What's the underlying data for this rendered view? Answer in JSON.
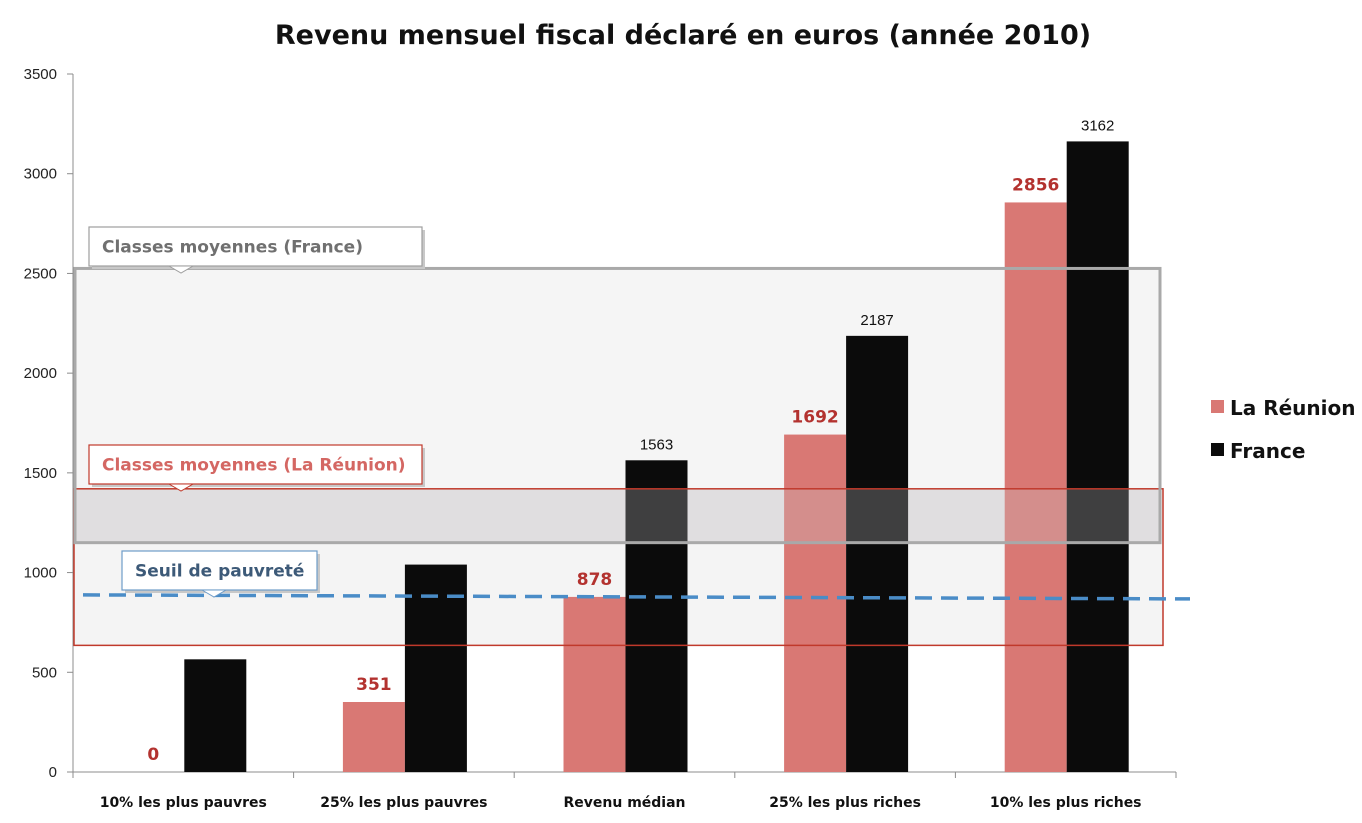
{
  "chart_data": {
    "type": "bar",
    "title": "Revenu mensuel fiscal déclaré en euros (année 2010)",
    "xlabel": "",
    "ylabel": "",
    "ylim": [
      0,
      3500
    ],
    "yticks": [
      0,
      500,
      1000,
      1500,
      2000,
      2500,
      3000,
      3500
    ],
    "categories": [
      "10% les plus pauvres",
      "25% les plus pauvres",
      "Revenu médian",
      "25% les plus riches",
      "10% les plus riches"
    ],
    "series": [
      {
        "name": "La Réunion",
        "color": "#d97874",
        "values": [
          0,
          351,
          878,
          1692,
          2856
        ],
        "labels": [
          "0",
          "351",
          "878",
          "1692",
          "2856"
        ]
      },
      {
        "name": "France",
        "color": "#0b0b0b",
        "values": [
          565,
          1040,
          1563,
          2187,
          3162
        ],
        "labels": [
          "",
          "",
          "1563",
          "2187",
          "3162"
        ]
      }
    ],
    "grid": false,
    "legend_position": "right",
    "annotations": {
      "france_band": {
        "label": "Classes moyennes (France)",
        "range": [
          1150,
          2525
        ],
        "color": "#9a9a9a"
      },
      "reunion_band": {
        "label": "Classes moyennes (La Réunion)",
        "range": [
          635,
          1420
        ],
        "color": "#c0392b"
      },
      "poverty_line": {
        "label": "Seuil de pauvreté",
        "value": 878,
        "color": "#4a8cc7"
      }
    }
  }
}
